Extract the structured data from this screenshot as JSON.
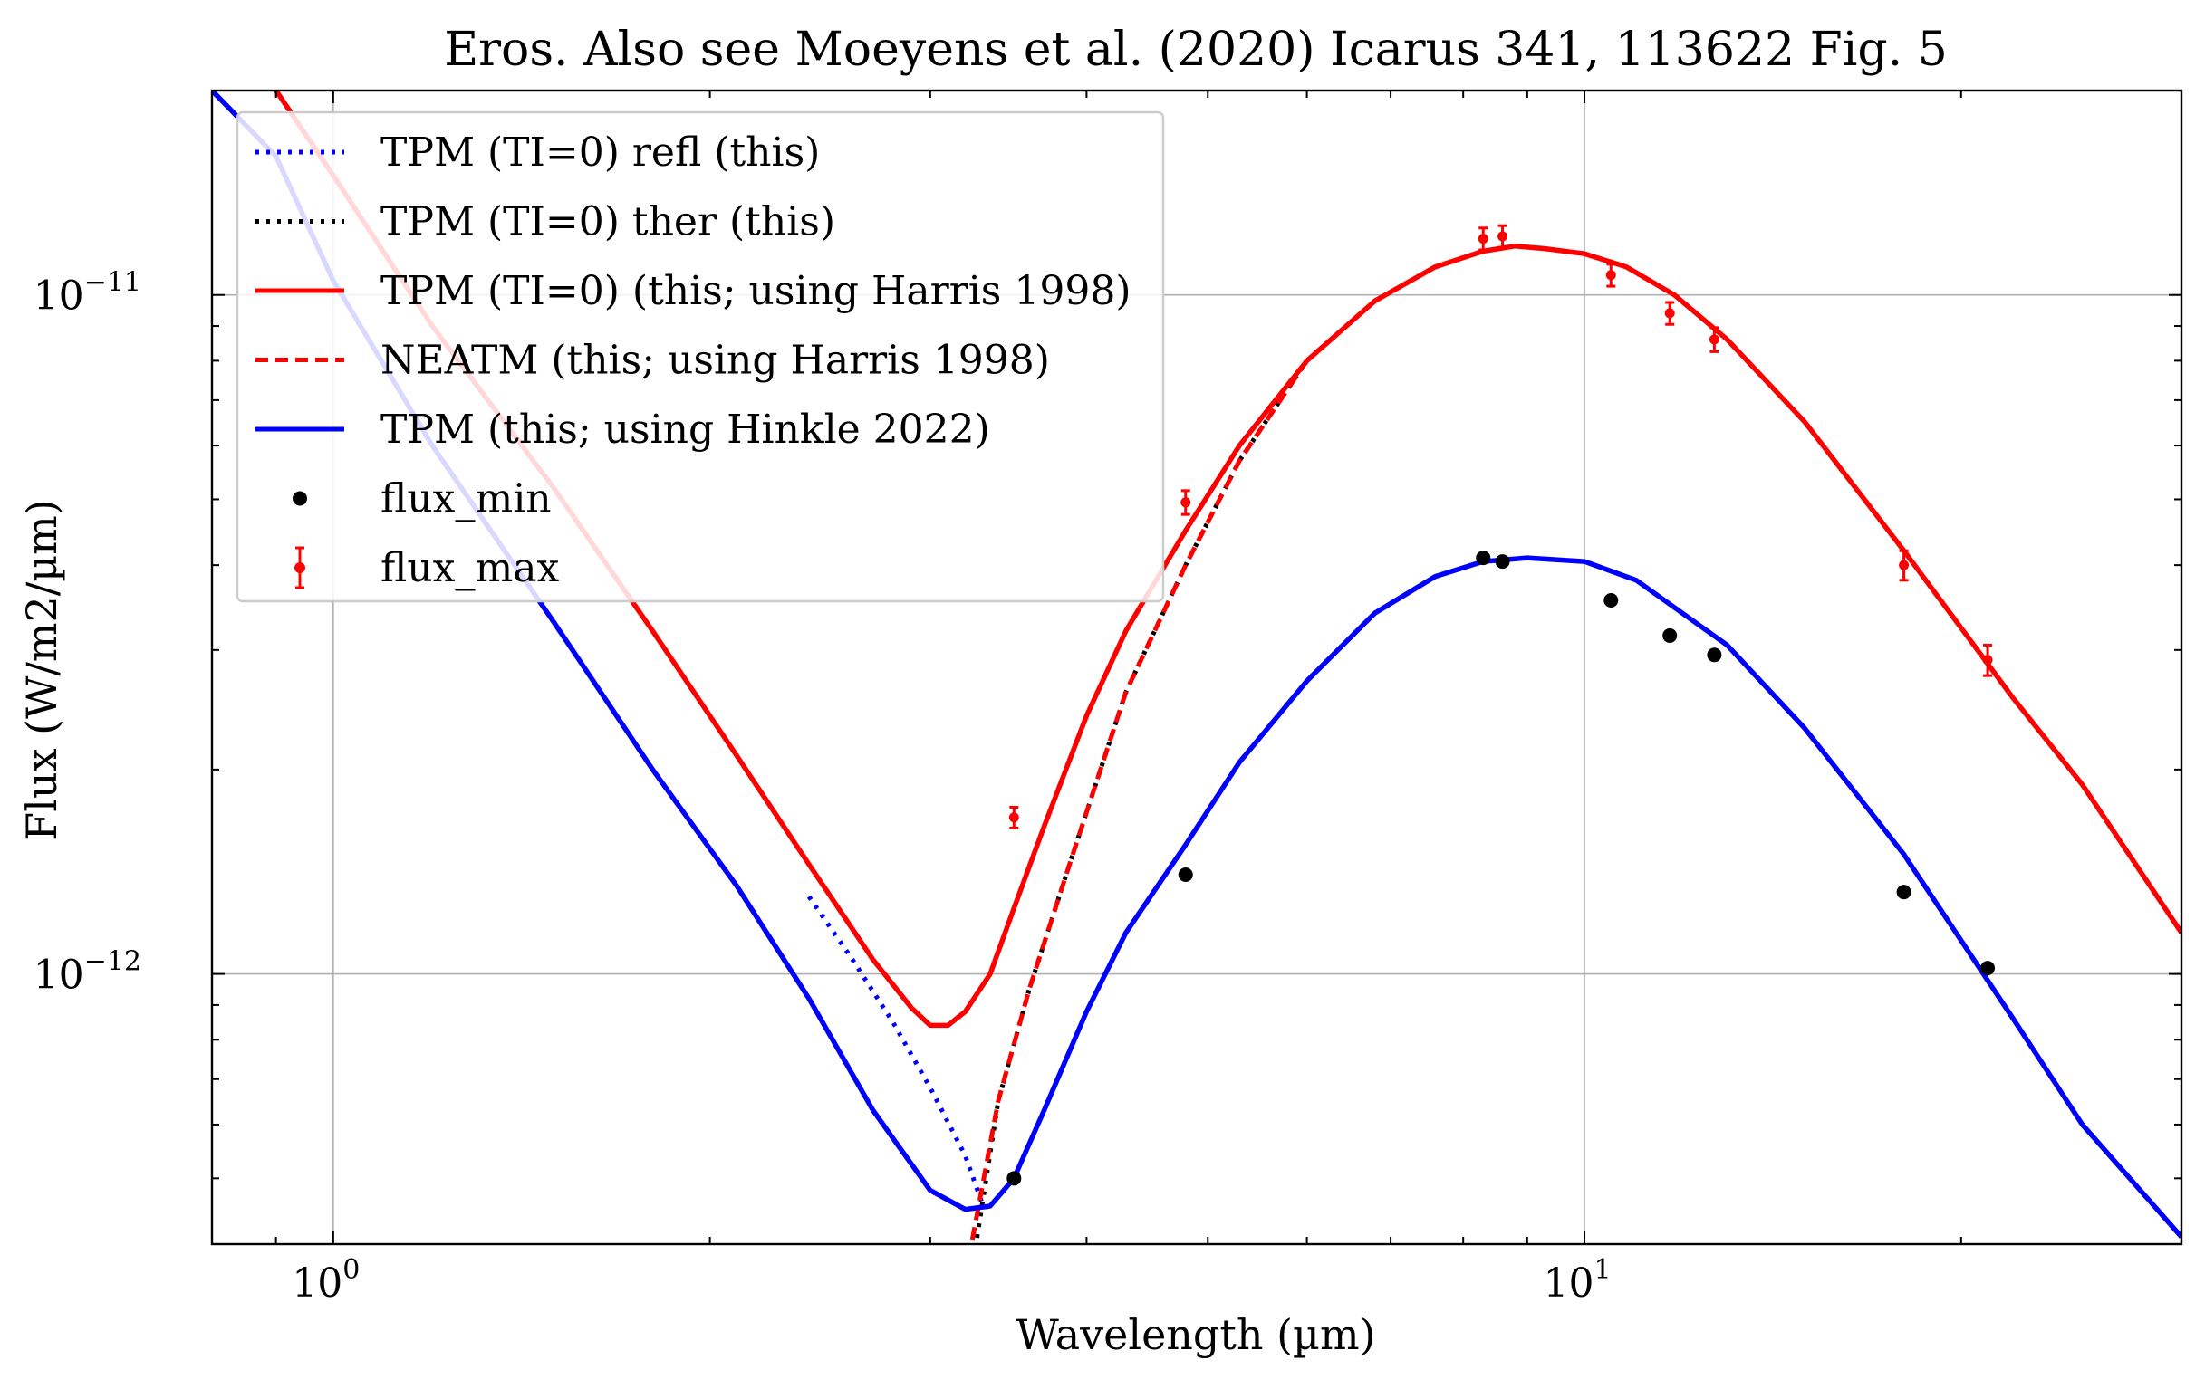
{
  "chart_data": {
    "type": "line",
    "title": "Eros. Also see Moeyens et al. (2020) Icarus 341, 113622 Fig. 5",
    "xlabel": "Wavelength (µm)",
    "ylabel": "Flux (W/m2/µm)",
    "xscale": "log",
    "yscale": "log",
    "xlim": [
      0.8,
      30.0
    ],
    "ylim": [
      4e-13,
      2e-11
    ],
    "x_ticks": [
      {
        "value": 1,
        "label": "10",
        "exp": "0"
      },
      {
        "value": 10,
        "label": "10",
        "exp": "1"
      }
    ],
    "y_ticks": [
      {
        "value": 1e-12,
        "label": "10",
        "exp": "−12"
      },
      {
        "value": 1e-11,
        "label": "10",
        "exp": "−11"
      }
    ],
    "grid": true,
    "legend_position": "top-left",
    "series": [
      {
        "name": "TPM (TI=0) refl (this)",
        "style": "dotted",
        "color": "#0000ff",
        "x": [
          2.4,
          2.6,
          2.8,
          3.0,
          3.2,
          3.3
        ],
        "y": [
          1.3e-12,
          1.05e-12,
          8.5e-13,
          6.8e-13,
          5.4e-13,
          4.6e-13
        ]
      },
      {
        "name": "TPM (TI=0) ther (this)",
        "style": "dotted",
        "color": "#000000",
        "x": [
          3.25,
          3.4,
          3.6,
          3.9,
          4.3,
          4.8,
          5.3,
          6.0,
          6.8,
          7.6,
          8.3,
          8.8,
          9.3,
          10.0,
          10.8,
          11.8,
          13.0,
          15.0,
          18.0,
          22.0,
          25.0,
          30.0
        ],
        "y": [
          3.8e-13,
          6.5e-13,
          9.5e-13,
          1.5e-12,
          2.6e-12,
          4e-12,
          5.7e-12,
          8e-12,
          9.8e-12,
          1.1e-11,
          1.16e-11,
          1.18e-11,
          1.17e-11,
          1.15e-11,
          1.1e-11,
          1e-11,
          8.6e-12,
          6.5e-12,
          4.2e-12,
          2.55e-12,
          1.9e-12,
          1.15e-12
        ]
      },
      {
        "name": "TPM (TI=0) (this; using Harris 1998)",
        "style": "solid",
        "color": "#ff0000",
        "x": [
          0.9,
          1.0,
          1.2,
          1.5,
          1.8,
          2.1,
          2.4,
          2.7,
          2.9,
          3.0,
          3.1,
          3.2,
          3.35,
          3.5,
          3.7,
          4.0,
          4.3,
          4.8,
          5.3,
          6.0,
          6.8,
          7.6,
          8.3,
          8.8,
          9.3,
          10.0,
          10.8,
          11.8,
          13.0,
          15.0,
          18.0,
          22.0,
          25.0,
          30.0
        ],
        "y": [
          2e-11,
          1.5e-11,
          9e-12,
          5.2e-12,
          3.2e-12,
          2.1e-12,
          1.45e-12,
          1.05e-12,
          8.9e-13,
          8.4e-13,
          8.4e-13,
          8.8e-13,
          1e-12,
          1.25e-12,
          1.65e-12,
          2.4e-12,
          3.2e-12,
          4.5e-12,
          6e-12,
          8e-12,
          9.8e-12,
          1.1e-11,
          1.16e-11,
          1.18e-11,
          1.17e-11,
          1.15e-11,
          1.1e-11,
          1e-11,
          8.6e-12,
          6.5e-12,
          4.2e-12,
          2.55e-12,
          1.9e-12,
          1.15e-12
        ]
      },
      {
        "name": "NEATM (this; using Harris 1998)",
        "style": "dashed",
        "color": "#ff0000",
        "x": [
          3.22,
          3.4,
          3.6,
          3.9,
          4.3,
          4.8,
          5.3,
          6.0,
          6.8
        ],
        "y": [
          3.8e-13,
          6.5e-13,
          9.5e-13,
          1.5e-12,
          2.6e-12,
          4e-12,
          5.7e-12,
          8e-12,
          9.8e-12
        ]
      },
      {
        "name": "TPM (this; using Hinkle 2022)",
        "style": "solid",
        "color": "#0000ff",
        "x": [
          0.8,
          0.9,
          1.0,
          1.2,
          1.5,
          1.8,
          2.1,
          2.4,
          2.7,
          3.0,
          3.2,
          3.35,
          3.5,
          3.7,
          4.0,
          4.3,
          4.8,
          5.3,
          6.0,
          6.8,
          7.6,
          8.3,
          9.0,
          10.0,
          11.0,
          13.0,
          15.0,
          18.0,
          22.0,
          25.0,
          30.0
        ],
        "y": [
          2e-11,
          1.6e-11,
          1.05e-11,
          6e-12,
          3.3e-12,
          2e-12,
          1.35e-12,
          9.2e-13,
          6.3e-13,
          4.8e-13,
          4.5e-13,
          4.55e-13,
          5e-13,
          6.3e-13,
          8.8e-13,
          1.15e-12,
          1.55e-12,
          2.05e-12,
          2.7e-12,
          3.4e-12,
          3.85e-12,
          4.05e-12,
          4.1e-12,
          4.05e-12,
          3.8e-12,
          3.05e-12,
          2.3e-12,
          1.5e-12,
          8.6e-13,
          6e-13,
          4.1e-13
        ]
      },
      {
        "name": "flux_min",
        "style": "points",
        "color": "#000000",
        "x": [
          3.5,
          4.8,
          8.3,
          8.6,
          10.5,
          11.7,
          12.7,
          18.0,
          21.0
        ],
        "y": [
          5e-13,
          1.4e-12,
          4.1e-12,
          4.05e-12,
          3.55e-12,
          3.15e-12,
          2.95e-12,
          1.32e-12,
          1.02e-12
        ]
      },
      {
        "name": "flux_max",
        "style": "errorbar",
        "color": "#ff0000",
        "x": [
          3.5,
          4.8,
          8.3,
          8.6,
          10.5,
          11.7,
          12.7,
          18.0,
          21.0
        ],
        "y": [
          1.7e-12,
          4.95e-12,
          1.21e-11,
          1.22e-11,
          1.07e-11,
          9.4e-12,
          8.6e-12,
          4e-12,
          2.9e-12
        ],
        "yerr": [
          6e-14,
          2e-13,
          4.5e-13,
          4.5e-13,
          4e-13,
          3.5e-13,
          3.5e-13,
          2e-13,
          1.5e-13
        ]
      }
    ]
  }
}
